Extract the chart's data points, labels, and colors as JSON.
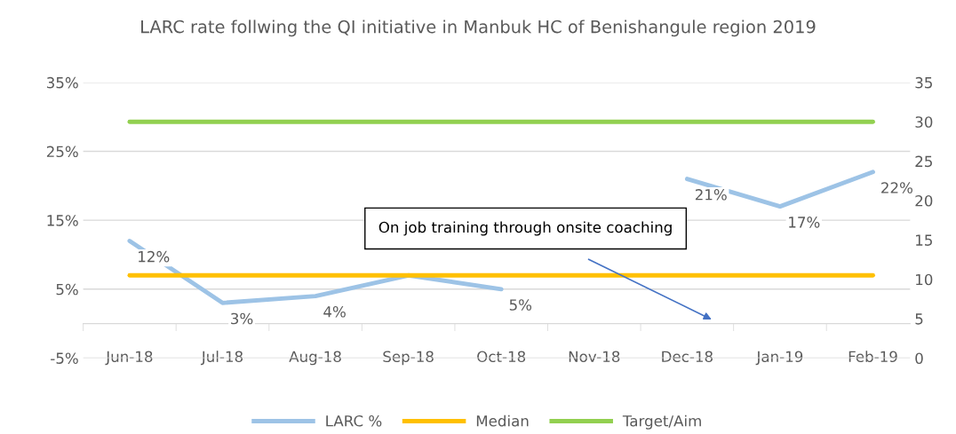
{
  "chart_data": {
    "type": "line",
    "title": "LARC rate follwing the QI initiative in Manbuk HC of Benishangule region 2019",
    "categories": [
      "Jun-18",
      "Jul-18",
      "Aug-18",
      "Sep-18",
      "Oct-18",
      "Nov-18",
      "Dec-18",
      "Jan-19",
      "Feb-19"
    ],
    "series": [
      {
        "name": "LARC %",
        "color": "#9dc3e6",
        "values": [
          12,
          3,
          4,
          7,
          5,
          null,
          21,
          17,
          22
        ],
        "value_labels": [
          "12%",
          "3%",
          "4%",
          null,
          "5%",
          null,
          "21%",
          "17%",
          "22%"
        ]
      },
      {
        "name": "Median",
        "color": "#ffc000",
        "values": [
          7,
          7,
          7,
          7,
          7,
          7,
          7,
          7,
          7
        ]
      },
      {
        "name": "Target/Aim",
        "color": "#92d050",
        "axis": "y2",
        "values": [
          30,
          30,
          30,
          30,
          30,
          30,
          30,
          30,
          30
        ]
      }
    ],
    "ylim": [
      -5,
      35
    ],
    "yticks": [
      {
        "value": -5,
        "label": "-5%"
      },
      {
        "value": 5,
        "label": "5%"
      },
      {
        "value": 15,
        "label": "15%"
      },
      {
        "value": 25,
        "label": "25%"
      },
      {
        "value": 35,
        "label": "35%"
      }
    ],
    "y2lim": [
      0,
      35
    ],
    "y2ticks": [
      0,
      5,
      10,
      15,
      20,
      25,
      30,
      35
    ],
    "annotations": [
      "On job training through onsite coaching"
    ],
    "grid": "y",
    "legend": "bottom",
    "marker": "none",
    "line_style": "solid"
  }
}
